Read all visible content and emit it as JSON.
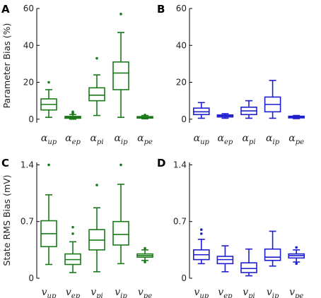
{
  "chart_data": [
    {
      "panel": "A",
      "type": "boxplot",
      "ylabel": "Parameter Bias (%)",
      "yticks": [
        0,
        20,
        40,
        60
      ],
      "ylim": [
        -2,
        60
      ],
      "color": "#1a7a1a",
      "categories": [
        {
          "base": "α",
          "sub": "up"
        },
        {
          "base": "α",
          "sub": "ep"
        },
        {
          "base": "α",
          "sub": "pi"
        },
        {
          "base": "α",
          "sub": "ip"
        },
        {
          "base": "α",
          "sub": "pe"
        }
      ],
      "boxes": [
        {
          "low": 1,
          "q1": 5,
          "median": 8,
          "q3": 11,
          "high": 16,
          "outliers": [
            20
          ]
        },
        {
          "low": 0,
          "q1": 0.5,
          "median": 1,
          "q3": 1.5,
          "high": 2.5,
          "outliers": [
            3,
            3.5,
            4
          ]
        },
        {
          "low": 2,
          "q1": 10,
          "median": 13,
          "q3": 17,
          "high": 24,
          "outliers": [
            33
          ]
        },
        {
          "low": 1,
          "q1": 16,
          "median": 25,
          "q3": 31,
          "high": 47,
          "outliers": [
            57
          ]
        },
        {
          "low": 0.2,
          "q1": 0.6,
          "median": 1,
          "q3": 1.4,
          "high": 2,
          "outliers": [
            2.3
          ]
        }
      ]
    },
    {
      "panel": "B",
      "type": "boxplot",
      "ylabel": "",
      "yticks": [
        0,
        20,
        40,
        60
      ],
      "ylim": [
        -2,
        60
      ],
      "color": "#1f1fcf",
      "categories": [
        {
          "base": "α",
          "sub": "up"
        },
        {
          "base": "α",
          "sub": "ep"
        },
        {
          "base": "α",
          "sub": "pi"
        },
        {
          "base": "α",
          "sub": "ip"
        },
        {
          "base": "α",
          "sub": "pe"
        }
      ],
      "boxes": [
        {
          "low": 0.5,
          "q1": 2.5,
          "median": 4,
          "q3": 6,
          "high": 9,
          "outliers": []
        },
        {
          "low": 0.5,
          "q1": 1.2,
          "median": 1.8,
          "q3": 2.3,
          "high": 3,
          "outliers": []
        },
        {
          "low": 0.5,
          "q1": 2.5,
          "median": 4.5,
          "q3": 6.5,
          "high": 10,
          "outliers": []
        },
        {
          "low": 0.5,
          "q1": 4,
          "median": 8,
          "q3": 12,
          "high": 21,
          "outliers": []
        },
        {
          "low": 0.3,
          "q1": 0.7,
          "median": 1.2,
          "q3": 1.6,
          "high": 2,
          "outliers": []
        }
      ]
    },
    {
      "panel": "C",
      "type": "boxplot",
      "ylabel": "State RMS Bias (mV)",
      "yticks": [
        0,
        0.7,
        1.4
      ],
      "ylim": [
        0,
        1.43
      ],
      "color": "#1a7a1a",
      "categories": [
        {
          "base": "v",
          "sub": "up"
        },
        {
          "base": "v",
          "sub": "ep"
        },
        {
          "base": "v",
          "sub": "pi"
        },
        {
          "base": "v",
          "sub": "ip"
        },
        {
          "base": "v",
          "sub": "pe"
        }
      ],
      "boxes": [
        {
          "low": 0.17,
          "q1": 0.39,
          "median": 0.55,
          "q3": 0.71,
          "high": 1.03,
          "outliers": [
            1.4
          ]
        },
        {
          "low": 0.07,
          "q1": 0.17,
          "median": 0.23,
          "q3": 0.3,
          "high": 0.45,
          "outliers": [
            0.55,
            0.63
          ]
        },
        {
          "low": 0.08,
          "q1": 0.35,
          "median": 0.47,
          "q3": 0.6,
          "high": 0.87,
          "outliers": [
            1.15
          ]
        },
        {
          "low": 0.18,
          "q1": 0.41,
          "median": 0.54,
          "q3": 0.7,
          "high": 1.16,
          "outliers": [
            1.4
          ]
        },
        {
          "low": 0.22,
          "q1": 0.26,
          "median": 0.28,
          "q3": 0.3,
          "high": 0.35,
          "outliers": [
            0.2,
            0.37
          ]
        }
      ]
    },
    {
      "panel": "D",
      "type": "boxplot",
      "ylabel": "",
      "yticks": [
        0,
        0.7,
        1.4
      ],
      "ylim": [
        0,
        1.43
      ],
      "color": "#1f1fcf",
      "categories": [
        {
          "base": "v",
          "sub": "up"
        },
        {
          "base": "v",
          "sub": "ep"
        },
        {
          "base": "v",
          "sub": "pi"
        },
        {
          "base": "v",
          "sub": "ip"
        },
        {
          "base": "v",
          "sub": "pe"
        }
      ],
      "boxes": [
        {
          "low": 0.18,
          "q1": 0.23,
          "median": 0.29,
          "q3": 0.35,
          "high": 0.48,
          "outliers": [
            0.55,
            0.6
          ]
        },
        {
          "low": 0.08,
          "q1": 0.18,
          "median": 0.23,
          "q3": 0.27,
          "high": 0.4,
          "outliers": []
        },
        {
          "low": 0.03,
          "q1": 0.07,
          "median": 0.12,
          "q3": 0.19,
          "high": 0.36,
          "outliers": []
        },
        {
          "low": 0.15,
          "q1": 0.22,
          "median": 0.26,
          "q3": 0.36,
          "high": 0.58,
          "outliers": []
        },
        {
          "low": 0.2,
          "q1": 0.25,
          "median": 0.28,
          "q3": 0.3,
          "high": 0.35,
          "outliers": [
            0.18,
            0.38
          ]
        }
      ]
    }
  ]
}
